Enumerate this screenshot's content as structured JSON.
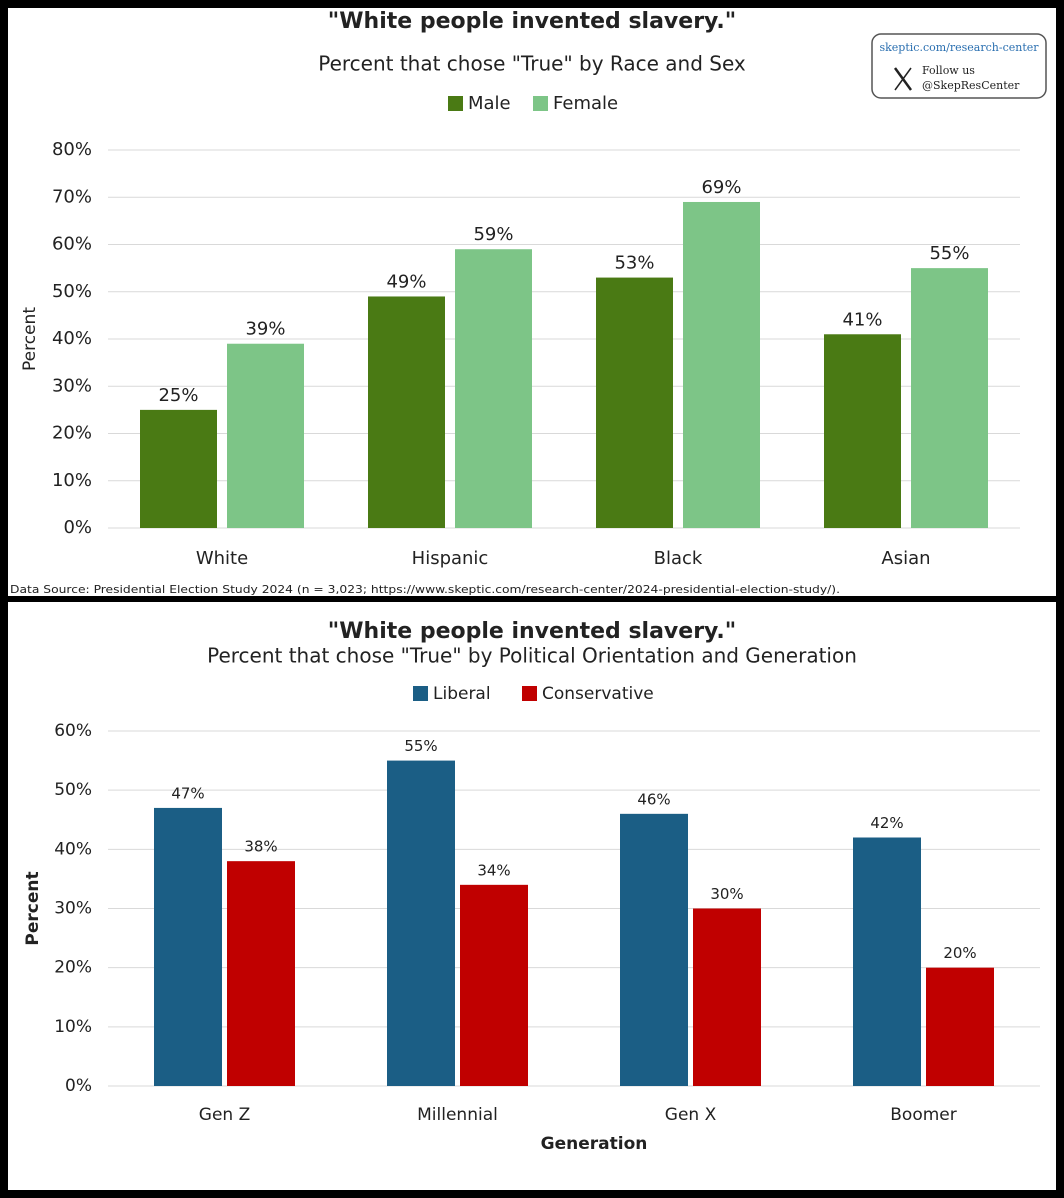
{
  "chart_data": [
    {
      "type": "bar",
      "title": "\"White people invented slavery.\"",
      "subtitle": "Percent that chose \"True\" by Race and Sex",
      "y_label": "Percent",
      "categories": [
        "White",
        "Hispanic",
        "Black",
        "Asian"
      ],
      "series": [
        {
          "name": "Male",
          "color": "#4a7a14",
          "values": [
            25,
            49,
            53,
            41
          ],
          "value_labels": [
            "25%",
            "49%",
            "53%",
            "41%"
          ]
        },
        {
          "name": "Female",
          "color": "#7dc587",
          "values": [
            39,
            59,
            69,
            55
          ],
          "value_labels": [
            "39%",
            "59%",
            "69%",
            "55%"
          ]
        }
      ],
      "ylim": [
        0,
        80
      ],
      "yticks": [
        {
          "value": 0,
          "label": "0%"
        },
        {
          "value": 10,
          "label": "10%"
        },
        {
          "value": 20,
          "label": "20%"
        },
        {
          "value": 30,
          "label": "30%"
        },
        {
          "value": 40,
          "label": "40%"
        },
        {
          "value": 50,
          "label": "50%"
        },
        {
          "value": 60,
          "label": "60%"
        },
        {
          "value": 70,
          "label": "70%"
        },
        {
          "value": 80,
          "label": "80%"
        }
      ],
      "grid": true,
      "legend": "top",
      "source": "Data Source: Presidential Election Study 2024 (n = 3,023; https://www.skeptic.com/research-center/2024-presidential-election-study/)."
    },
    {
      "type": "bar",
      "title": "\"White people invented slavery.\"",
      "subtitle": "Percent that chose \"True\" by Political Orientation and Generation",
      "y_label": "Percent",
      "x_label": "Generation",
      "categories": [
        "Gen Z",
        "Millennial",
        "Gen X",
        "Boomer"
      ],
      "series": [
        {
          "name": "Liberal",
          "color": "#1b5e85",
          "values": [
            47,
            55,
            46,
            42
          ],
          "value_labels": [
            "47%",
            "55%",
            "46%",
            "42%"
          ]
        },
        {
          "name": "Conservative",
          "color": "#c00000",
          "values": [
            38,
            34,
            30,
            20
          ],
          "value_labels": [
            "38%",
            "34%",
            "30%",
            "20%"
          ]
        }
      ],
      "ylim": [
        0,
        60
      ],
      "yticks": [
        {
          "value": 0,
          "label": "0%"
        },
        {
          "value": 10,
          "label": "10%"
        },
        {
          "value": 20,
          "label": "20%"
        },
        {
          "value": 30,
          "label": "30%"
        },
        {
          "value": 40,
          "label": "40%"
        },
        {
          "value": 50,
          "label": "50%"
        },
        {
          "value": 60,
          "label": "60%"
        }
      ],
      "grid": true,
      "legend": "top"
    }
  ],
  "logo": {
    "url": "skeptic.com/research-center",
    "follow": "Follow us",
    "handle": "@SkepResCenter"
  }
}
